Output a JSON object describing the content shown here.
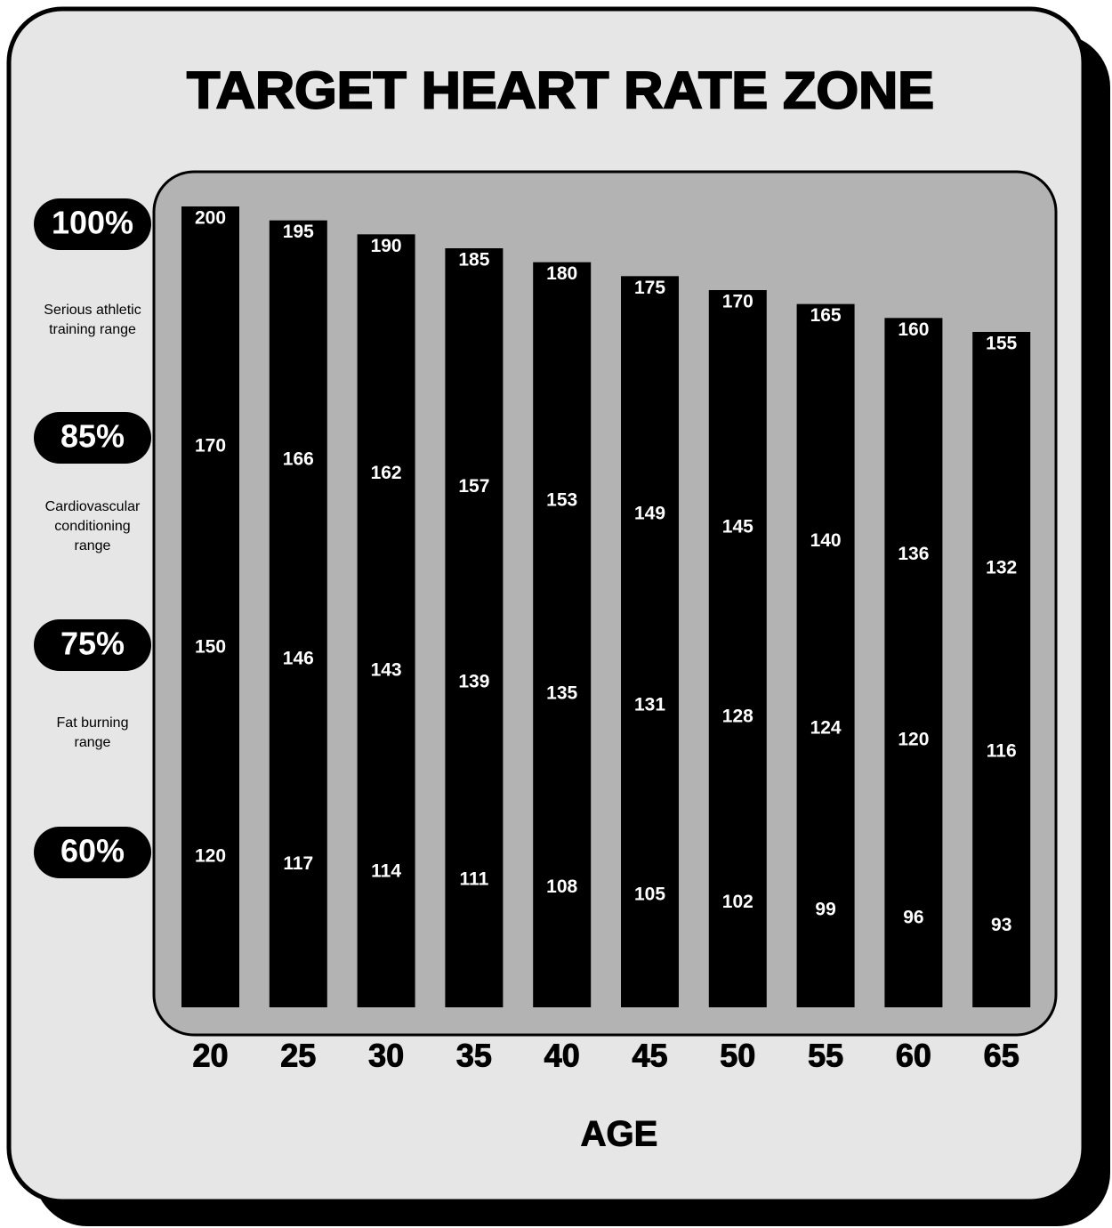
{
  "chart_data": {
    "type": "bar",
    "title": "TARGET HEART RATE ZONE",
    "x_label": "AGE",
    "categories": [
      "20",
      "25",
      "30",
      "35",
      "40",
      "45",
      "50",
      "55",
      "60",
      "65"
    ],
    "color": "#000000",
    "series": [
      {
        "name": "100%",
        "values": [
          200,
          195,
          190,
          185,
          180,
          175,
          170,
          165,
          160,
          155
        ]
      },
      {
        "name": "85%",
        "values": [
          170,
          166,
          162,
          157,
          153,
          149,
          145,
          140,
          136,
          132
        ]
      },
      {
        "name": "75%",
        "values": [
          150,
          146,
          143,
          139,
          135,
          131,
          128,
          124,
          120,
          116
        ]
      },
      {
        "name": "60%",
        "values": [
          120,
          117,
          114,
          111,
          108,
          105,
          102,
          99,
          96,
          93
        ]
      }
    ],
    "zones": [
      "Serious athletic training range",
      "Cardiovascular conditioning range",
      "Fat burning range"
    ]
  }
}
